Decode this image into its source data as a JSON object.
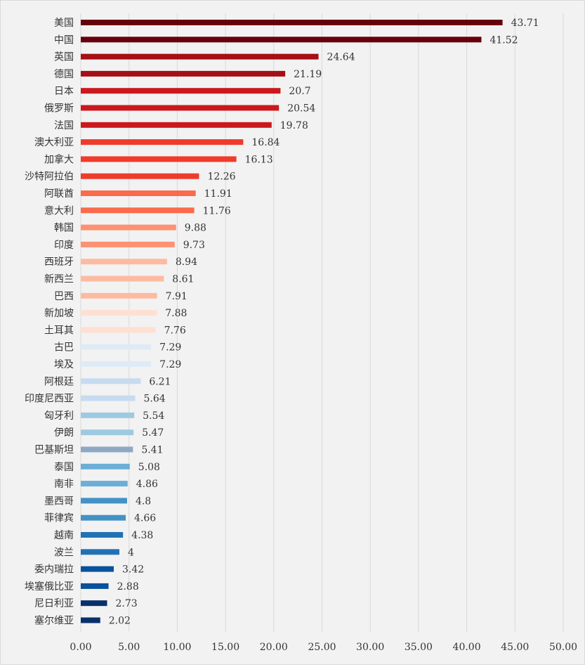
{
  "chart_data": {
    "type": "bar",
    "orientation": "horizontal",
    "categories": [
      "美国",
      "中国",
      "英国",
      "德国",
      "日本",
      "俄罗斯",
      "法国",
      "澳大利亚",
      "加拿大",
      "沙特阿拉伯",
      "阿联酋",
      "意大利",
      "韩国",
      "印度",
      "西班牙",
      "新西兰",
      "巴西",
      "新加坡",
      "土耳其",
      "古巴",
      "埃及",
      "阿根廷",
      "印度尼西亚",
      "匈牙利",
      "伊朗",
      "巴基斯坦",
      "泰国",
      "南非",
      "墨西哥",
      "菲律宾",
      "越南",
      "波兰",
      "委内瑞拉",
      "埃塞俄比亚",
      "尼日利亚",
      "塞尔维亚"
    ],
    "values": [
      43.71,
      41.52,
      24.64,
      21.19,
      20.7,
      20.54,
      19.78,
      16.84,
      16.13,
      12.26,
      11.91,
      11.76,
      9.88,
      9.73,
      8.94,
      8.61,
      7.91,
      7.88,
      7.76,
      7.29,
      7.29,
      6.21,
      5.64,
      5.54,
      5.47,
      5.41,
      5.08,
      4.86,
      4.8,
      4.66,
      4.38,
      4,
      3.42,
      2.88,
      2.73,
      2.02
    ],
    "value_labels": [
      "43.71",
      "41.52",
      "24.64",
      "21.19",
      "20.7",
      "20.54",
      "19.78",
      "16.84",
      "16.13",
      "12.26",
      "11.91",
      "11.76",
      "9.88",
      "9.73",
      "8.94",
      "8.61",
      "7.91",
      "7.88",
      "7.76",
      "7.29",
      "7.29",
      "6.21",
      "5.64",
      "5.54",
      "5.47",
      "5.41",
      "5.08",
      "4.86",
      "4.8",
      "4.66",
      "4.38",
      "4",
      "3.42",
      "2.88",
      "2.73",
      "2.02"
    ],
    "colors": [
      "#67000d",
      "#67000d",
      "#a50f15",
      "#a50f15",
      "#cb181d",
      "#cb181d",
      "#cb181d",
      "#ef3b2c",
      "#ef3b2c",
      "#ef3b2c",
      "#fb6a4a",
      "#fb6a4a",
      "#fc9272",
      "#fc9272",
      "#fcbba1",
      "#fcbba1",
      "#fcbba1",
      "#fee0d2",
      "#fee0d2",
      "#deebf7",
      "#deebf7",
      "#c6dbef",
      "#c6dbef",
      "#9ecae1",
      "#9ecae1",
      "#8fa8c4",
      "#6baed6",
      "#6baed6",
      "#4292c6",
      "#4292c6",
      "#2171b5",
      "#2171b5",
      "#08519c",
      "#08519c",
      "#08306b",
      "#08306b"
    ],
    "xlim": [
      0,
      50
    ],
    "x_ticks": [
      "0.00",
      "5.00",
      "10.00",
      "15.00",
      "20.00",
      "25.00",
      "30.00",
      "35.00",
      "40.00",
      "45.00",
      "50.00"
    ],
    "grid": "vertical",
    "title": "",
    "xlabel": "",
    "ylabel": ""
  }
}
